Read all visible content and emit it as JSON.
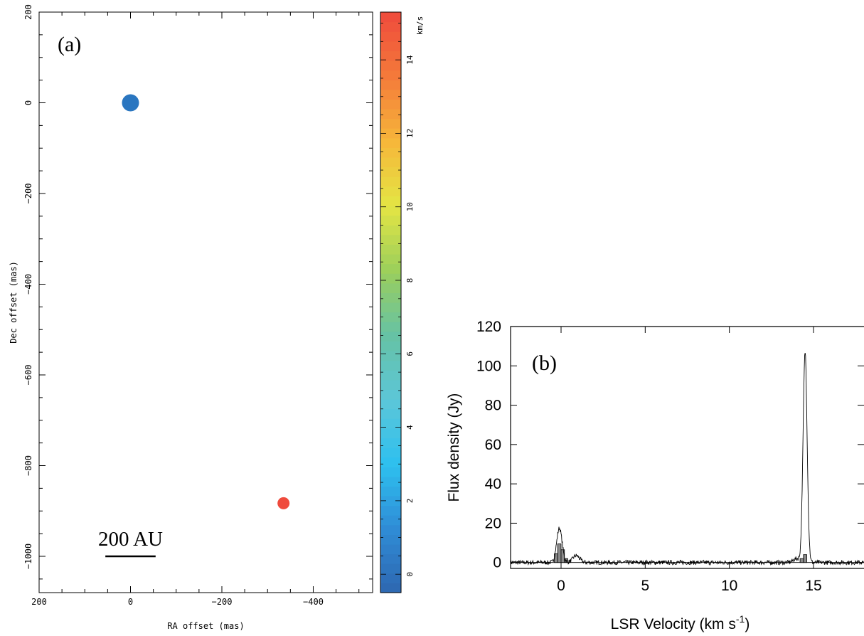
{
  "chart_data": [
    {
      "panel": "(a)",
      "type": "scatter",
      "xlabel": "RA offset (mas)",
      "ylabel": "Dec offset (mas)",
      "xlim": [
        200,
        -530
      ],
      "ylim": [
        -1080,
        200
      ],
      "x_ticks": [
        "200",
        "0",
        "−200",
        "−400"
      ],
      "x_tick_values": [
        200,
        0,
        -200,
        -400
      ],
      "y_ticks": [
        "200",
        "0",
        "−200",
        "−400",
        "−600",
        "−800",
        "−1000"
      ],
      "y_tick_values": [
        200,
        0,
        -200,
        -400,
        -600,
        -800,
        -1000
      ],
      "points": [
        {
          "x": 0,
          "y": 0,
          "velocity": 1.5,
          "color": "#2a76c0",
          "size": "large"
        },
        {
          "x": -335,
          "y": -883,
          "velocity": 14.5,
          "color": "#ef4a3c",
          "size": "small"
        }
      ],
      "scale_bar": {
        "label": "200 AU",
        "x_from": 55,
        "x_to": -55,
        "y": -1000
      },
      "colorbar": {
        "label": "km/s",
        "range": [
          -0.5,
          15.3
        ],
        "ticks": [
          "0",
          "2",
          "4",
          "6",
          "8",
          "10",
          "12",
          "14"
        ],
        "tick_values": [
          0,
          2,
          4,
          6,
          8,
          10,
          12,
          14
        ],
        "colormap": [
          "#2e67b0",
          "#2f8cd6",
          "#2ec0ef",
          "#5cc6d8",
          "#66c2a4",
          "#9ccf5b",
          "#e4e544",
          "#f6b73a",
          "#f47a3a",
          "#ef4a3c"
        ]
      }
    },
    {
      "panel": "(b)",
      "type": "line",
      "xlabel_main": "LSR Velocity (km s",
      "xlabel_sup": "-1",
      "xlabel_close": ")",
      "ylabel": "Flux density (Jy)",
      "xlim": [
        -3,
        18
      ],
      "ylim": [
        -3,
        120
      ],
      "x_ticks": [
        "0",
        "5",
        "10",
        "15"
      ],
      "x_tick_values": [
        0,
        5,
        10,
        15
      ],
      "y_ticks": [
        "0",
        "20",
        "40",
        "60",
        "80",
        "100",
        "120"
      ],
      "y_tick_values": [
        0,
        20,
        40,
        60,
        80,
        100,
        120
      ],
      "spectrum_peaks": [
        {
          "center": -0.1,
          "peak": 17.5,
          "width": 0.16
        },
        {
          "center": 0.9,
          "peak": 3.5,
          "width": 0.2
        },
        {
          "center": 14.5,
          "peak": 107,
          "width": 0.12
        },
        {
          "center": 14.0,
          "peak": 2,
          "width": 0.2
        }
      ],
      "bars": [
        {
          "x": -0.3,
          "value": 4.5
        },
        {
          "x": -0.1,
          "value": 9.5
        },
        {
          "x": 0.1,
          "value": 6.5
        },
        {
          "x": 0.3,
          "value": 2
        },
        {
          "x": 14.5,
          "value": 4
        },
        {
          "x": 14.3,
          "value": 2
        }
      ],
      "bar_width": 0.2,
      "bar_color": "#8a8a8a"
    }
  ],
  "labels": {
    "panel_a": "(a)",
    "panel_b": "(b)",
    "scale_bar": "200 AU",
    "colorbar_unit": "km/s"
  }
}
